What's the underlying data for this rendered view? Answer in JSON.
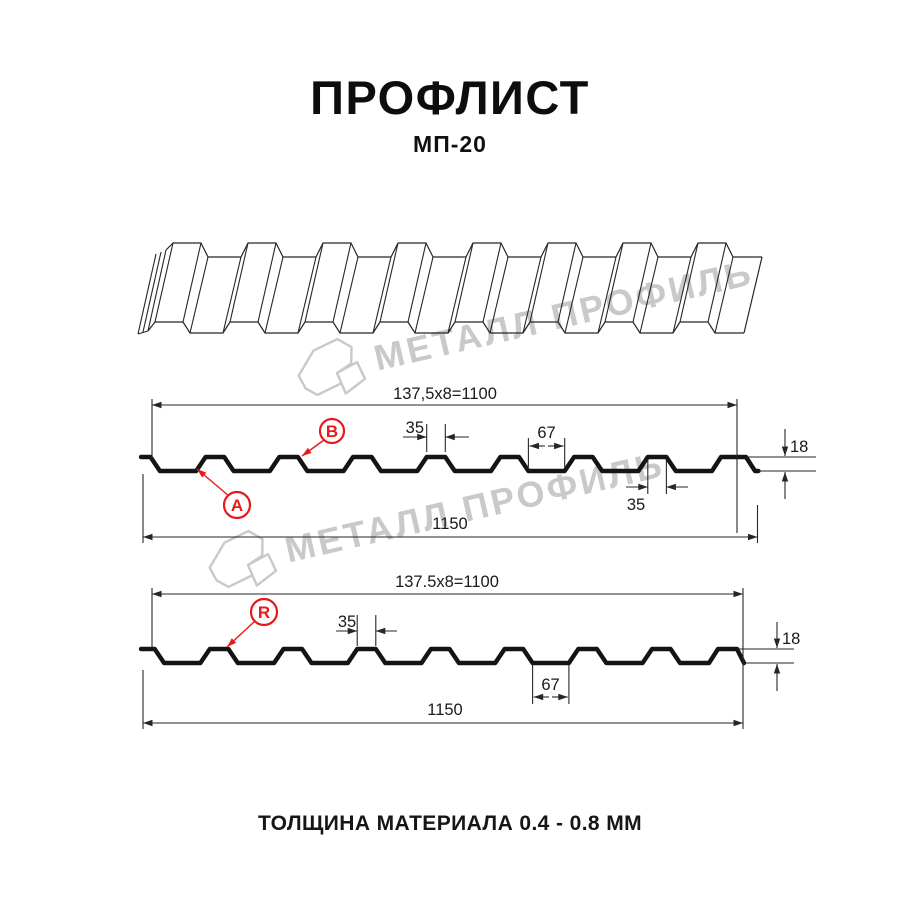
{
  "title": "ПРОФЛИСТ",
  "subtitle": "МП-20",
  "footer": "ТОЛЩИНА МАТЕРИАЛА 0.4 - 0.8 ММ",
  "watermark": {
    "text": "МЕТАЛЛ ПРОФИЛЬ"
  },
  "colors": {
    "line": "#1a1a1a",
    "accent_red": "#e8191c",
    "watermark_gray": "#c9c9c9"
  },
  "drawing_3d": {
    "name": "profiled-sheet-perspective-view"
  },
  "sections": [
    {
      "name": "cross-section-side-A",
      "pitch_label": "137,5x8=1100",
      "overall_width_label": "1150",
      "height_label": "18",
      "rib_top_width_label": "35",
      "valley_width_label": "67",
      "rib_top_width_label_2": "35",
      "callouts": [
        {
          "letter": "A"
        },
        {
          "letter": "B"
        }
      ]
    },
    {
      "name": "cross-section-side-R",
      "pitch_label": "137.5x8=1100",
      "overall_width_label": "1150",
      "height_label": "18",
      "rib_top_width_label": "35",
      "valley_width_label": "67",
      "callouts": [
        {
          "letter": "R"
        }
      ]
    }
  ]
}
